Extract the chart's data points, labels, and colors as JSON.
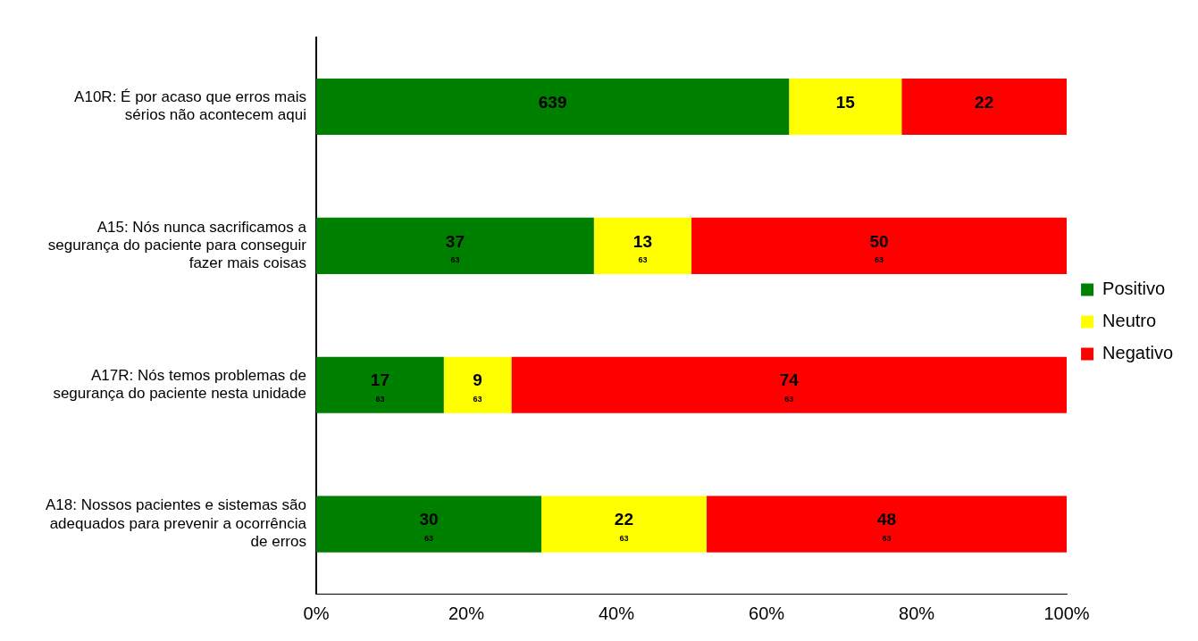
{
  "chart_data": {
    "type": "bar",
    "orientation": "horizontal",
    "stacked": true,
    "categories": [
      "A10R: É por acaso que erros mais sérios não acontecem aqui",
      "A15: Nós nunca sacrificamos a segurança do paciente para conseguir fazer mais coisas",
      "A17R: Nós temos problemas de segurança do paciente nesta unidade",
      "A18: Nossos pacientes e sistemas são adequados para prevenir a ocorrência de erros"
    ],
    "series": [
      {
        "name": "Positivo",
        "color": "#008000",
        "values": [
          63,
          37,
          17,
          30
        ],
        "value_labels": [
          null,
          "37",
          "17",
          "30"
        ]
      },
      {
        "name": "Neutro",
        "color": "#ffff00",
        "values": [
          15,
          13,
          9,
          22
        ],
        "value_labels": [
          "15",
          "13",
          "9",
          "22"
        ]
      },
      {
        "name": "Negativo",
        "color": "#ff0000",
        "values": [
          22,
          50,
          74,
          48
        ],
        "value_labels": [
          "22",
          "50",
          "74",
          "48"
        ]
      }
    ],
    "xlim": [
      0,
      100
    ],
    "xticks": [
      {
        "value": 0,
        "label": "0%"
      },
      {
        "value": 20,
        "label": "20%"
      },
      {
        "value": 40,
        "label": "40%"
      },
      {
        "value": 60,
        "label": "60%"
      },
      {
        "value": 80,
        "label": "80%"
      },
      {
        "value": 100,
        "label": "100%"
      }
    ],
    "annotations": [
      "639",
      "63",
      "63",
      "63",
      "63",
      "63",
      "63",
      "63",
      "63",
      "63"
    ],
    "grid": false,
    "legend": "right"
  }
}
